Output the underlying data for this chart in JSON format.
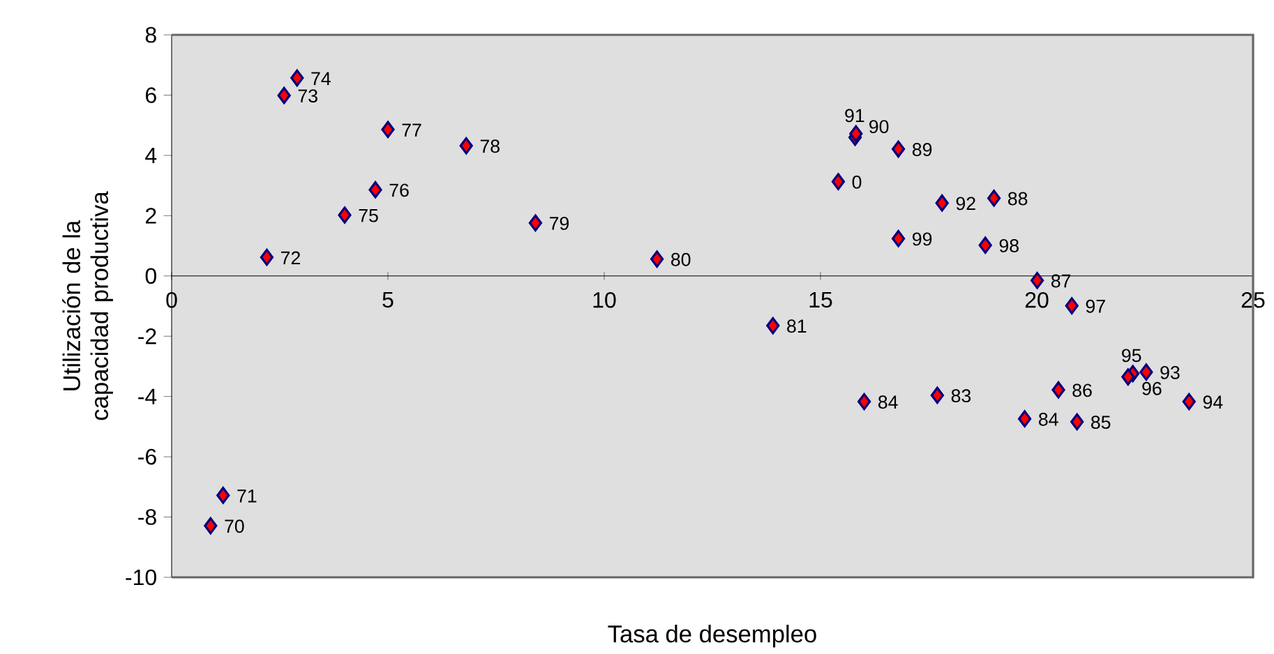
{
  "chart_data": {
    "type": "scatter",
    "xlabel": "Tasa de desempleo",
    "ylabel": "Utilización de la capacidad productiva",
    "x": [
      0.9,
      1.19,
      2.2,
      2.6,
      2.9,
      4.0,
      4.71,
      5.0,
      6.81,
      8.41,
      11.22,
      13.9,
      16.01,
      17.7,
      19.72,
      20.93,
      20.5,
      20.01,
      19.01,
      16.8,
      15.8,
      15.82,
      17.81,
      22.53,
      23.52,
      22.22,
      22.11,
      20.81,
      18.81,
      16.8,
      15.41
    ],
    "values": [
      -8.29,
      -7.28,
      0.62,
      5.99,
      6.57,
      2.02,
      2.86,
      4.86,
      4.32,
      1.76,
      0.56,
      -1.65,
      -4.17,
      -3.96,
      -4.74,
      -4.84,
      -3.78,
      -0.15,
      2.58,
      4.21,
      4.6,
      4.72,
      2.42,
      -3.19,
      -4.17,
      -3.24,
      -3.35,
      -0.99,
      1.02,
      1.24,
      3.13
    ],
    "annotations": [
      {
        "text": "70",
        "x": 0.9,
        "y": -8.29
      },
      {
        "text": "71",
        "x": 1.19,
        "y": -7.28
      },
      {
        "text": "72",
        "x": 2.2,
        "y": 0.62
      },
      {
        "text": "73",
        "x": 2.6,
        "y": 5.99
      },
      {
        "text": "74",
        "x": 2.9,
        "y": 6.57
      },
      {
        "text": "75",
        "x": 4.0,
        "y": 2.02
      },
      {
        "text": "76",
        "x": 4.71,
        "y": 2.86
      },
      {
        "text": "77",
        "x": 5.0,
        "y": 4.86
      },
      {
        "text": "78",
        "x": 6.81,
        "y": 4.32
      },
      {
        "text": "79",
        "x": 8.41,
        "y": 1.76
      },
      {
        "text": "80",
        "x": 11.22,
        "y": 0.56
      },
      {
        "text": "81",
        "x": 13.9,
        "y": -1.65
      },
      {
        "text": "84",
        "x": 16.01,
        "y": -4.17
      },
      {
        "text": "83",
        "x": 17.7,
        "y": -3.96
      },
      {
        "text": "84",
        "x": 19.72,
        "y": -4.74
      },
      {
        "text": "85",
        "x": 20.93,
        "y": -4.84
      },
      {
        "text": "86",
        "x": 20.5,
        "y": -3.78
      },
      {
        "text": "87",
        "x": 20.01,
        "y": -0.15
      },
      {
        "text": "88",
        "x": 19.01,
        "y": 2.58
      },
      {
        "text": "89",
        "x": 16.8,
        "y": 4.21
      },
      {
        "text": "90",
        "x": 15.8,
        "y": 4.6
      },
      {
        "text": "91",
        "x": 15.82,
        "y": 4.72
      },
      {
        "text": "92",
        "x": 17.81,
        "y": 2.42
      },
      {
        "text": "93",
        "x": 22.53,
        "y": -3.19
      },
      {
        "text": "94",
        "x": 23.52,
        "y": -4.17
      },
      {
        "text": "95",
        "x": 22.22,
        "y": -3.24
      },
      {
        "text": "96",
        "x": 22.11,
        "y": -3.35
      },
      {
        "text": "97",
        "x": 20.81,
        "y": -0.99
      },
      {
        "text": "98",
        "x": 18.81,
        "y": 1.02
      },
      {
        "text": "99",
        "x": 16.8,
        "y": 1.24
      },
      {
        "text": "0",
        "x": 15.41,
        "y": 3.13
      }
    ],
    "color": "#ff0000",
    "marker": "diamond",
    "xlim": [
      0,
      25
    ],
    "xticks": [
      0,
      5,
      10,
      15,
      20,
      25
    ],
    "ylim": [
      -10,
      8
    ],
    "yticks": [
      -10,
      -8,
      -6,
      -4,
      -2,
      0,
      2,
      4,
      6,
      8
    ]
  }
}
